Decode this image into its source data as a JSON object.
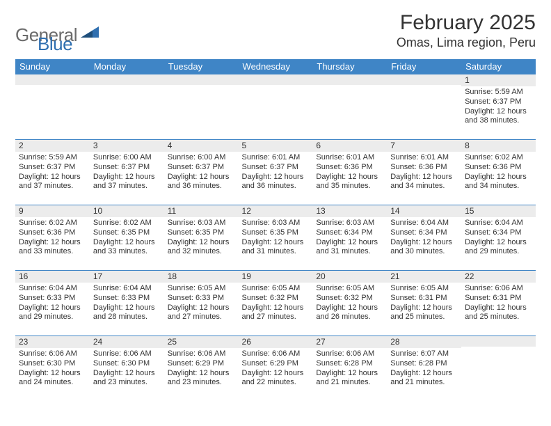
{
  "brand": {
    "part1": "General",
    "part2": "Blue"
  },
  "title": "February 2025",
  "location": "Omas, Lima region, Peru",
  "colors": {
    "header_bg": "#3f85c6",
    "header_text": "#ffffff",
    "row_stripe": "#ececec",
    "border": "#3f85c6",
    "text": "#333333",
    "brand_gray": "#6b6b6b",
    "brand_blue": "#2f6fb0"
  },
  "weekdays": [
    "Sunday",
    "Monday",
    "Tuesday",
    "Wednesday",
    "Thursday",
    "Friday",
    "Saturday"
  ],
  "weeks": [
    [
      {
        "n": "",
        "sr": "",
        "ss": "",
        "dl": ""
      },
      {
        "n": "",
        "sr": "",
        "ss": "",
        "dl": ""
      },
      {
        "n": "",
        "sr": "",
        "ss": "",
        "dl": ""
      },
      {
        "n": "",
        "sr": "",
        "ss": "",
        "dl": ""
      },
      {
        "n": "",
        "sr": "",
        "ss": "",
        "dl": ""
      },
      {
        "n": "",
        "sr": "",
        "ss": "",
        "dl": ""
      },
      {
        "n": "1",
        "sr": "Sunrise: 5:59 AM",
        "ss": "Sunset: 6:37 PM",
        "dl": "Daylight: 12 hours and 38 minutes."
      }
    ],
    [
      {
        "n": "2",
        "sr": "Sunrise: 5:59 AM",
        "ss": "Sunset: 6:37 PM",
        "dl": "Daylight: 12 hours and 37 minutes."
      },
      {
        "n": "3",
        "sr": "Sunrise: 6:00 AM",
        "ss": "Sunset: 6:37 PM",
        "dl": "Daylight: 12 hours and 37 minutes."
      },
      {
        "n": "4",
        "sr": "Sunrise: 6:00 AM",
        "ss": "Sunset: 6:37 PM",
        "dl": "Daylight: 12 hours and 36 minutes."
      },
      {
        "n": "5",
        "sr": "Sunrise: 6:01 AM",
        "ss": "Sunset: 6:37 PM",
        "dl": "Daylight: 12 hours and 36 minutes."
      },
      {
        "n": "6",
        "sr": "Sunrise: 6:01 AM",
        "ss": "Sunset: 6:36 PM",
        "dl": "Daylight: 12 hours and 35 minutes."
      },
      {
        "n": "7",
        "sr": "Sunrise: 6:01 AM",
        "ss": "Sunset: 6:36 PM",
        "dl": "Daylight: 12 hours and 34 minutes."
      },
      {
        "n": "8",
        "sr": "Sunrise: 6:02 AM",
        "ss": "Sunset: 6:36 PM",
        "dl": "Daylight: 12 hours and 34 minutes."
      }
    ],
    [
      {
        "n": "9",
        "sr": "Sunrise: 6:02 AM",
        "ss": "Sunset: 6:36 PM",
        "dl": "Daylight: 12 hours and 33 minutes."
      },
      {
        "n": "10",
        "sr": "Sunrise: 6:02 AM",
        "ss": "Sunset: 6:35 PM",
        "dl": "Daylight: 12 hours and 33 minutes."
      },
      {
        "n": "11",
        "sr": "Sunrise: 6:03 AM",
        "ss": "Sunset: 6:35 PM",
        "dl": "Daylight: 12 hours and 32 minutes."
      },
      {
        "n": "12",
        "sr": "Sunrise: 6:03 AM",
        "ss": "Sunset: 6:35 PM",
        "dl": "Daylight: 12 hours and 31 minutes."
      },
      {
        "n": "13",
        "sr": "Sunrise: 6:03 AM",
        "ss": "Sunset: 6:34 PM",
        "dl": "Daylight: 12 hours and 31 minutes."
      },
      {
        "n": "14",
        "sr": "Sunrise: 6:04 AM",
        "ss": "Sunset: 6:34 PM",
        "dl": "Daylight: 12 hours and 30 minutes."
      },
      {
        "n": "15",
        "sr": "Sunrise: 6:04 AM",
        "ss": "Sunset: 6:34 PM",
        "dl": "Daylight: 12 hours and 29 minutes."
      }
    ],
    [
      {
        "n": "16",
        "sr": "Sunrise: 6:04 AM",
        "ss": "Sunset: 6:33 PM",
        "dl": "Daylight: 12 hours and 29 minutes."
      },
      {
        "n": "17",
        "sr": "Sunrise: 6:04 AM",
        "ss": "Sunset: 6:33 PM",
        "dl": "Daylight: 12 hours and 28 minutes."
      },
      {
        "n": "18",
        "sr": "Sunrise: 6:05 AM",
        "ss": "Sunset: 6:33 PM",
        "dl": "Daylight: 12 hours and 27 minutes."
      },
      {
        "n": "19",
        "sr": "Sunrise: 6:05 AM",
        "ss": "Sunset: 6:32 PM",
        "dl": "Daylight: 12 hours and 27 minutes."
      },
      {
        "n": "20",
        "sr": "Sunrise: 6:05 AM",
        "ss": "Sunset: 6:32 PM",
        "dl": "Daylight: 12 hours and 26 minutes."
      },
      {
        "n": "21",
        "sr": "Sunrise: 6:05 AM",
        "ss": "Sunset: 6:31 PM",
        "dl": "Daylight: 12 hours and 25 minutes."
      },
      {
        "n": "22",
        "sr": "Sunrise: 6:06 AM",
        "ss": "Sunset: 6:31 PM",
        "dl": "Daylight: 12 hours and 25 minutes."
      }
    ],
    [
      {
        "n": "23",
        "sr": "Sunrise: 6:06 AM",
        "ss": "Sunset: 6:30 PM",
        "dl": "Daylight: 12 hours and 24 minutes."
      },
      {
        "n": "24",
        "sr": "Sunrise: 6:06 AM",
        "ss": "Sunset: 6:30 PM",
        "dl": "Daylight: 12 hours and 23 minutes."
      },
      {
        "n": "25",
        "sr": "Sunrise: 6:06 AM",
        "ss": "Sunset: 6:29 PM",
        "dl": "Daylight: 12 hours and 23 minutes."
      },
      {
        "n": "26",
        "sr": "Sunrise: 6:06 AM",
        "ss": "Sunset: 6:29 PM",
        "dl": "Daylight: 12 hours and 22 minutes."
      },
      {
        "n": "27",
        "sr": "Sunrise: 6:06 AM",
        "ss": "Sunset: 6:28 PM",
        "dl": "Daylight: 12 hours and 21 minutes."
      },
      {
        "n": "28",
        "sr": "Sunrise: 6:07 AM",
        "ss": "Sunset: 6:28 PM",
        "dl": "Daylight: 12 hours and 21 minutes."
      },
      {
        "n": "",
        "sr": "",
        "ss": "",
        "dl": ""
      }
    ]
  ]
}
